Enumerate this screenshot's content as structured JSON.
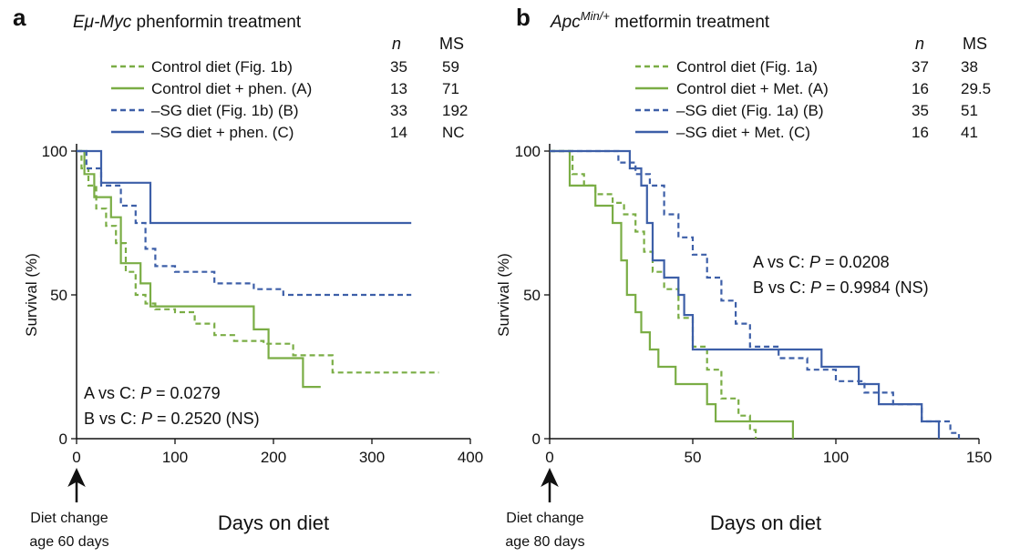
{
  "chart_data": [
    {
      "panel": "a",
      "type": "line",
      "title_prefix": "Eμ-Myc",
      "title_rest": " phenformin treatment",
      "xlabel": "Days on diet",
      "ylabel": "Survival (%)",
      "xlim": [
        0,
        400
      ],
      "ylim": [
        0,
        100
      ],
      "xticks": [
        0,
        100,
        200,
        300,
        400
      ],
      "yticks": [
        0,
        50,
        100
      ],
      "header_n": "n",
      "header_ms": "MS",
      "annotation_line1": "Diet change",
      "annotation_line2": "age 60 days",
      "stats": [
        {
          "prefix": "A vs C: ",
          "p": "P",
          "rest": " = 0.0279"
        },
        {
          "prefix": "B vs C: ",
          "p": "P",
          "rest": " = 0.2520 (NS)"
        }
      ],
      "series": [
        {
          "name": "Control diet (Fig. 1b)",
          "n": "35",
          "ms": "59",
          "color": "#7aad45",
          "dash": "6,4",
          "points": [
            [
              0,
              100
            ],
            [
              5,
              94
            ],
            [
              12,
              88
            ],
            [
              20,
              80
            ],
            [
              30,
              74
            ],
            [
              40,
              68
            ],
            [
              50,
              58
            ],
            [
              60,
              50
            ],
            [
              70,
              47
            ],
            [
              80,
              45
            ],
            [
              100,
              44
            ],
            [
              120,
              40
            ],
            [
              140,
              36
            ],
            [
              160,
              34
            ],
            [
              190,
              33
            ],
            [
              220,
              29
            ],
            [
              260,
              23
            ],
            [
              300,
              23
            ],
            [
              330,
              23
            ],
            [
              368,
              23
            ]
          ]
        },
        {
          "name": "Control diet + phen. (A)",
          "n": "13",
          "ms": "71",
          "color": "#7aad45",
          "dash": "",
          "points": [
            [
              0,
              100
            ],
            [
              8,
              92
            ],
            [
              18,
              84
            ],
            [
              35,
              77
            ],
            [
              45,
              61
            ],
            [
              65,
              54
            ],
            [
              75,
              46
            ],
            [
              120,
              46
            ],
            [
              178,
              46
            ],
            [
              180,
              38
            ],
            [
              195,
              28
            ],
            [
              225,
              28
            ],
            [
              230,
              18
            ],
            [
              248,
              18
            ]
          ]
        },
        {
          "name": "–SG diet (Fig. 1b) (B)",
          "n": "33",
          "ms": "192",
          "color": "#3d5fa8",
          "dash": "6,4",
          "points": [
            [
              0,
              100
            ],
            [
              10,
              94
            ],
            [
              25,
              88
            ],
            [
              45,
              81
            ],
            [
              60,
              75
            ],
            [
              70,
              66
            ],
            [
              80,
              60
            ],
            [
              100,
              58
            ],
            [
              140,
              54
            ],
            [
              180,
              52
            ],
            [
              210,
              50
            ],
            [
              340,
              50
            ]
          ]
        },
        {
          "name": "–SG diet + phen. (C)",
          "n": "14",
          "ms": "NC",
          "color": "#3d5fa8",
          "dash": "",
          "points": [
            [
              0,
              100
            ],
            [
              20,
              100
            ],
            [
              25,
              89
            ],
            [
              72,
              89
            ],
            [
              75,
              75
            ],
            [
              340,
              75
            ]
          ]
        }
      ]
    },
    {
      "panel": "b",
      "type": "line",
      "title_prefix": "Apc",
      "title_sup": "Min/+",
      "title_rest": " metformin treatment",
      "xlabel": "Days on diet",
      "ylabel": "Survival (%)",
      "xlim": [
        0,
        150
      ],
      "ylim": [
        0,
        100
      ],
      "xticks": [
        0,
        50,
        100,
        150
      ],
      "yticks": [
        0,
        50,
        100
      ],
      "header_n": "n",
      "header_ms": "MS",
      "annotation_line1": "Diet change",
      "annotation_line2": "age 80 days",
      "stats": [
        {
          "prefix": "A vs C: ",
          "p": "P",
          "rest": " = 0.0208"
        },
        {
          "prefix": "B vs C: ",
          "p": "P",
          "rest": " = 0.9984 (NS)"
        }
      ],
      "series": [
        {
          "name": "Control diet (Fig. 1a)",
          "n": "37",
          "ms": "38",
          "color": "#7aad45",
          "dash": "6,4",
          "points": [
            [
              0,
              100
            ],
            [
              8,
              92
            ],
            [
              12,
              88
            ],
            [
              16,
              85
            ],
            [
              22,
              82
            ],
            [
              26,
              78
            ],
            [
              30,
              72
            ],
            [
              33,
              65
            ],
            [
              36,
              58
            ],
            [
              40,
              52
            ],
            [
              45,
              42
            ],
            [
              50,
              32
            ],
            [
              55,
              24
            ],
            [
              60,
              14
            ],
            [
              66,
              8
            ],
            [
              70,
              3
            ],
            [
              72,
              0
            ]
          ]
        },
        {
          "name": "Control diet + Met. (A)",
          "n": "16",
          "ms": "29.5",
          "color": "#7aad45",
          "dash": "",
          "points": [
            [
              0,
              100
            ],
            [
              7,
              88
            ],
            [
              16,
              81
            ],
            [
              22,
              75
            ],
            [
              25,
              62
            ],
            [
              27,
              50
            ],
            [
              30,
              44
            ],
            [
              32,
              37
            ],
            [
              35,
              31
            ],
            [
              38,
              25
            ],
            [
              44,
              19
            ],
            [
              55,
              12
            ],
            [
              58,
              6
            ],
            [
              85,
              0
            ]
          ]
        },
        {
          "name": "–SG diet (Fig. 1a) (B)",
          "n": "35",
          "ms": "51",
          "color": "#3d5fa8",
          "dash": "6,4",
          "points": [
            [
              0,
              100
            ],
            [
              20,
              100
            ],
            [
              24,
              96
            ],
            [
              30,
              92
            ],
            [
              35,
              88
            ],
            [
              40,
              78
            ],
            [
              45,
              70
            ],
            [
              50,
              64
            ],
            [
              55,
              56
            ],
            [
              60,
              48
            ],
            [
              65,
              40
            ],
            [
              70,
              32
            ],
            [
              80,
              28
            ],
            [
              90,
              24
            ],
            [
              100,
              20
            ],
            [
              110,
              16
            ],
            [
              120,
              12
            ],
            [
              130,
              6
            ],
            [
              140,
              2
            ],
            [
              143,
              0
            ]
          ]
        },
        {
          "name": "–SG diet + Met. (C)",
          "n": "16",
          "ms": "41",
          "color": "#3d5fa8",
          "dash": "",
          "points": [
            [
              0,
              100
            ],
            [
              25,
              100
            ],
            [
              28,
              94
            ],
            [
              32,
              88
            ],
            [
              34,
              75
            ],
            [
              36,
              62
            ],
            [
              40,
              56
            ],
            [
              45,
              50
            ],
            [
              47,
              43
            ],
            [
              50,
              31
            ],
            [
              90,
              31
            ],
            [
              95,
              25
            ],
            [
              108,
              19
            ],
            [
              115,
              12
            ],
            [
              130,
              6
            ],
            [
              136,
              0
            ]
          ]
        }
      ]
    }
  ]
}
